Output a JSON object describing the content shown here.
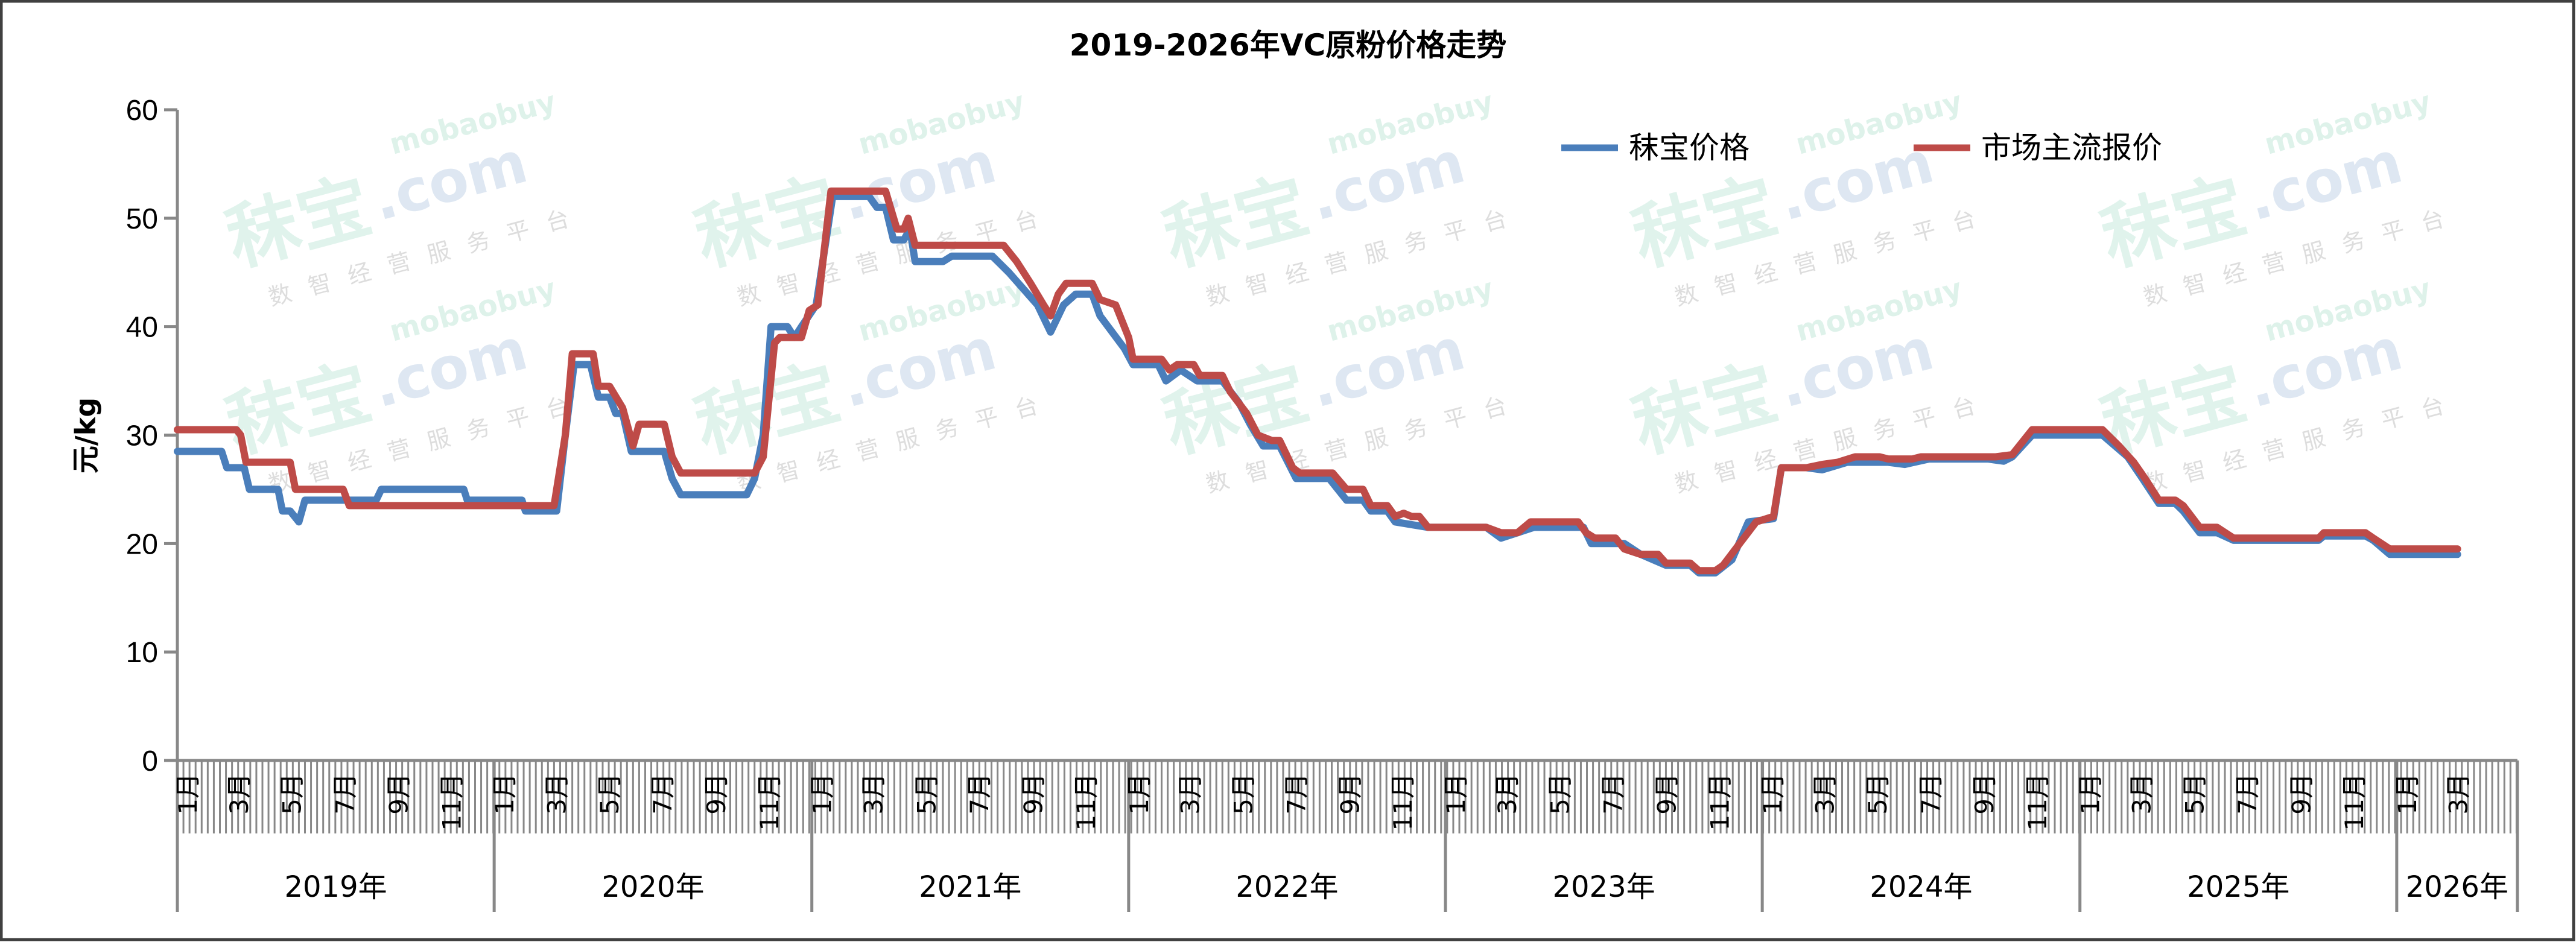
{
  "chart_data": {
    "type": "line",
    "title": "2019-2026年VC原粉价格走势",
    "ylabel": "元/kg",
    "xlabel": "",
    "ylim": [
      0,
      60
    ],
    "yticks": [
      0,
      10,
      20,
      30,
      40,
      50,
      60
    ],
    "xlim": [
      "2019-01-01",
      "2026-05-20"
    ],
    "x_tick_interval": "week",
    "month_labels": [
      "1月",
      "3月",
      "5月",
      "7月",
      "9月",
      "11月"
    ],
    "year_labels": [
      "2019年",
      "2020年",
      "2021年",
      "2022年",
      "2023年",
      "2024年",
      "2025年",
      "2026年"
    ],
    "legend_position": "top-right",
    "grid": false,
    "watermark": {
      "logo": "秣宝",
      "domain": ".com",
      "brand": "mobaobuy",
      "slogan": "数智经营服务平台"
    },
    "series": [
      {
        "name": "秣宝价格",
        "color": "#4a7ebb",
        "points": [
          [
            "2019-01-01",
            28.5
          ],
          [
            "2019-02-21",
            28.5
          ],
          [
            "2019-02-27",
            27
          ],
          [
            "2019-03-19",
            27
          ],
          [
            "2019-03-25",
            25
          ],
          [
            "2019-04-27",
            25
          ],
          [
            "2019-05-02",
            23
          ],
          [
            "2019-05-11",
            23
          ],
          [
            "2019-05-21",
            22
          ],
          [
            "2019-05-28",
            24
          ],
          [
            "2019-08-18",
            24
          ],
          [
            "2019-08-24",
            25
          ],
          [
            "2019-11-27",
            25
          ],
          [
            "2019-12-01",
            24
          ],
          [
            "2020-02-02",
            24
          ],
          [
            "2020-02-06",
            23
          ],
          [
            "2020-03-13",
            23
          ],
          [
            "2020-03-23",
            30
          ],
          [
            "2020-04-02",
            36.5
          ],
          [
            "2020-04-21",
            36.5
          ],
          [
            "2020-04-30",
            33.5
          ],
          [
            "2020-05-13",
            33.5
          ],
          [
            "2020-05-20",
            32
          ],
          [
            "2020-05-28",
            32
          ],
          [
            "2020-06-07",
            28.5
          ],
          [
            "2020-07-15",
            28.5
          ],
          [
            "2020-07-24",
            26
          ],
          [
            "2020-08-03",
            24.5
          ],
          [
            "2020-10-18",
            24.5
          ],
          [
            "2020-10-27",
            26
          ],
          [
            "2020-11-06",
            30
          ],
          [
            "2020-11-15",
            40
          ],
          [
            "2020-12-04",
            40
          ],
          [
            "2020-12-12",
            39
          ],
          [
            "2020-12-20",
            40
          ],
          [
            "2021-01-06",
            42
          ],
          [
            "2021-01-25",
            52
          ],
          [
            "2021-03-08",
            52
          ],
          [
            "2021-03-17",
            51
          ],
          [
            "2021-03-27",
            51
          ],
          [
            "2021-04-05",
            48
          ],
          [
            "2021-04-17",
            48
          ],
          [
            "2021-04-24",
            49
          ],
          [
            "2021-04-30",
            46
          ],
          [
            "2021-06-01",
            46
          ],
          [
            "2021-06-11",
            46.5
          ],
          [
            "2021-07-28",
            46.5
          ],
          [
            "2021-08-16",
            45
          ],
          [
            "2021-09-18",
            42
          ],
          [
            "2021-10-03",
            39.5
          ],
          [
            "2021-10-18",
            42
          ],
          [
            "2021-11-01",
            43
          ],
          [
            "2021-11-20",
            43
          ],
          [
            "2021-11-29",
            41
          ],
          [
            "2021-12-27",
            38
          ],
          [
            "2022-01-06",
            36.5
          ],
          [
            "2022-02-04",
            36.5
          ],
          [
            "2022-02-13",
            35
          ],
          [
            "2022-03-02",
            36
          ],
          [
            "2022-03-21",
            35
          ],
          [
            "2022-04-19",
            35
          ],
          [
            "2022-05-08",
            33
          ],
          [
            "2022-05-21",
            31
          ],
          [
            "2022-06-05",
            29
          ],
          [
            "2022-06-24",
            29
          ],
          [
            "2022-07-13",
            26
          ],
          [
            "2022-08-20",
            26
          ],
          [
            "2022-09-09",
            24
          ],
          [
            "2022-09-28",
            24
          ],
          [
            "2022-10-07",
            23
          ],
          [
            "2022-10-26",
            23
          ],
          [
            "2022-11-04",
            22
          ],
          [
            "2022-12-12",
            21.5
          ],
          [
            "2023-02-17",
            21.5
          ],
          [
            "2023-03-06",
            20.5
          ],
          [
            "2023-03-25",
            21
          ],
          [
            "2023-04-13",
            21.5
          ],
          [
            "2023-06-09",
            21.5
          ],
          [
            "2023-06-18",
            20
          ],
          [
            "2023-07-26",
            20
          ],
          [
            "2023-08-14",
            19
          ],
          [
            "2023-09-12",
            18
          ],
          [
            "2023-10-10",
            18
          ],
          [
            "2023-10-20",
            17.3
          ],
          [
            "2023-11-08",
            17.3
          ],
          [
            "2023-11-27",
            18.5
          ],
          [
            "2023-12-16",
            22
          ],
          [
            "2024-01-14",
            22.3
          ],
          [
            "2024-01-23",
            27
          ],
          [
            "2024-02-21",
            27
          ],
          [
            "2024-03-10",
            26.8
          ],
          [
            "2024-04-08",
            27.5
          ],
          [
            "2024-05-25",
            27.5
          ],
          [
            "2024-06-13",
            27.3
          ],
          [
            "2024-07-11",
            27.8
          ],
          [
            "2024-09-17",
            27.8
          ],
          [
            "2024-10-05",
            27.6
          ],
          [
            "2024-10-15",
            28
          ],
          [
            "2024-11-07",
            30
          ],
          [
            "2025-01-27",
            30
          ],
          [
            "2025-02-25",
            28
          ],
          [
            "2025-03-14",
            26
          ],
          [
            "2025-04-02",
            23.7
          ],
          [
            "2025-04-21",
            23.7
          ],
          [
            "2025-04-30",
            23
          ],
          [
            "2025-05-19",
            21
          ],
          [
            "2025-06-08",
            21
          ],
          [
            "2025-06-27",
            20.3
          ],
          [
            "2025-10-03",
            20.3
          ],
          [
            "2025-10-09",
            20.7
          ],
          [
            "2025-11-26",
            20.7
          ],
          [
            "2025-12-05",
            20.3
          ],
          [
            "2025-12-24",
            19
          ],
          [
            "2026-03-12",
            19
          ]
        ]
      },
      {
        "name": "市场主流报价",
        "color": "#be4b48",
        "points": [
          [
            "2019-01-01",
            30.5
          ],
          [
            "2019-03-10",
            30.5
          ],
          [
            "2019-03-15",
            30
          ],
          [
            "2019-03-21",
            27.5
          ],
          [
            "2019-05-11",
            27.5
          ],
          [
            "2019-05-17",
            25
          ],
          [
            "2019-07-11",
            25
          ],
          [
            "2019-07-18",
            23.5
          ],
          [
            "2020-03-10",
            23.5
          ],
          [
            "2020-03-23",
            30
          ],
          [
            "2020-03-31",
            37.5
          ],
          [
            "2020-04-24",
            37.5
          ],
          [
            "2020-04-30",
            34.5
          ],
          [
            "2020-05-13",
            34.5
          ],
          [
            "2020-05-28",
            32.5
          ],
          [
            "2020-06-09",
            29
          ],
          [
            "2020-06-16",
            31
          ],
          [
            "2020-07-15",
            31
          ],
          [
            "2020-07-24",
            28
          ],
          [
            "2020-08-03",
            26.5
          ],
          [
            "2020-10-27",
            26.5
          ],
          [
            "2020-11-06",
            28
          ],
          [
            "2020-11-19",
            38.5
          ],
          [
            "2020-11-25",
            39
          ],
          [
            "2020-12-20",
            39
          ],
          [
            "2020-12-29",
            41.5
          ],
          [
            "2021-01-08",
            42
          ],
          [
            "2021-01-23",
            52.5
          ],
          [
            "2021-03-27",
            52.5
          ],
          [
            "2021-04-09",
            49
          ],
          [
            "2021-04-17",
            49
          ],
          [
            "2021-04-22",
            50
          ],
          [
            "2021-04-30",
            47.5
          ],
          [
            "2021-08-10",
            47.5
          ],
          [
            "2021-08-25",
            46
          ],
          [
            "2021-09-10",
            44
          ],
          [
            "2021-09-25",
            42
          ],
          [
            "2021-10-03",
            41
          ],
          [
            "2021-10-12",
            43
          ],
          [
            "2021-10-21",
            44
          ],
          [
            "2021-11-20",
            44
          ],
          [
            "2021-11-29",
            42.5
          ],
          [
            "2021-12-17",
            42
          ],
          [
            "2022-01-01",
            39
          ],
          [
            "2022-01-06",
            37
          ],
          [
            "2022-02-08",
            37
          ],
          [
            "2022-02-17",
            36
          ],
          [
            "2022-02-26",
            36.5
          ],
          [
            "2022-03-17",
            36.5
          ],
          [
            "2022-03-24",
            35.5
          ],
          [
            "2022-04-19",
            35.5
          ],
          [
            "2022-04-28",
            34
          ],
          [
            "2022-05-17",
            32
          ],
          [
            "2022-05-30",
            30
          ],
          [
            "2022-06-15",
            29.5
          ],
          [
            "2022-06-24",
            29.5
          ],
          [
            "2022-07-09",
            27
          ],
          [
            "2022-07-17",
            26.5
          ],
          [
            "2022-08-24",
            26.5
          ],
          [
            "2022-09-09",
            25
          ],
          [
            "2022-09-28",
            25
          ],
          [
            "2022-10-07",
            23.5
          ],
          [
            "2022-10-26",
            23.5
          ],
          [
            "2022-11-04",
            22.5
          ],
          [
            "2022-11-14",
            22.8
          ],
          [
            "2022-11-23",
            22.5
          ],
          [
            "2022-12-02",
            22.5
          ],
          [
            "2022-12-12",
            21.5
          ],
          [
            "2023-02-17",
            21.5
          ],
          [
            "2023-03-06",
            21
          ],
          [
            "2023-03-25",
            21
          ],
          [
            "2023-04-09",
            22
          ],
          [
            "2023-06-03",
            22
          ],
          [
            "2023-06-12",
            21
          ],
          [
            "2023-06-22",
            20.5
          ],
          [
            "2023-07-16",
            20.5
          ],
          [
            "2023-07-26",
            19.5
          ],
          [
            "2023-08-14",
            19
          ],
          [
            "2023-09-03",
            19
          ],
          [
            "2023-09-12",
            18.2
          ],
          [
            "2023-10-10",
            18.2
          ],
          [
            "2023-10-20",
            17.5
          ],
          [
            "2023-11-08",
            17.5
          ],
          [
            "2023-11-17",
            18
          ],
          [
            "2023-12-06",
            20
          ],
          [
            "2023-12-25",
            22
          ],
          [
            "2024-01-14",
            22.5
          ],
          [
            "2024-01-23",
            27
          ],
          [
            "2024-02-21",
            27
          ],
          [
            "2024-03-10",
            27.3
          ],
          [
            "2024-03-28",
            27.5
          ],
          [
            "2024-04-17",
            28
          ],
          [
            "2024-05-15",
            28
          ],
          [
            "2024-05-25",
            27.8
          ],
          [
            "2024-06-22",
            27.8
          ],
          [
            "2024-07-02",
            28
          ],
          [
            "2024-09-26",
            28
          ],
          [
            "2024-10-15",
            28.2
          ],
          [
            "2024-11-07",
            30.5
          ],
          [
            "2025-01-27",
            30.5
          ],
          [
            "2025-02-15",
            29
          ],
          [
            "2025-03-04",
            27.5
          ],
          [
            "2025-03-17",
            26
          ],
          [
            "2025-04-02",
            24
          ],
          [
            "2025-04-21",
            24
          ],
          [
            "2025-04-30",
            23.5
          ],
          [
            "2025-05-19",
            21.5
          ],
          [
            "2025-06-08",
            21.5
          ],
          [
            "2025-06-27",
            20.5
          ],
          [
            "2025-10-03",
            20.5
          ],
          [
            "2025-10-09",
            21
          ],
          [
            "2025-11-26",
            21
          ],
          [
            "2025-12-05",
            20.5
          ],
          [
            "2025-12-24",
            19.5
          ],
          [
            "2026-03-12",
            19.5
          ]
        ]
      }
    ]
  }
}
